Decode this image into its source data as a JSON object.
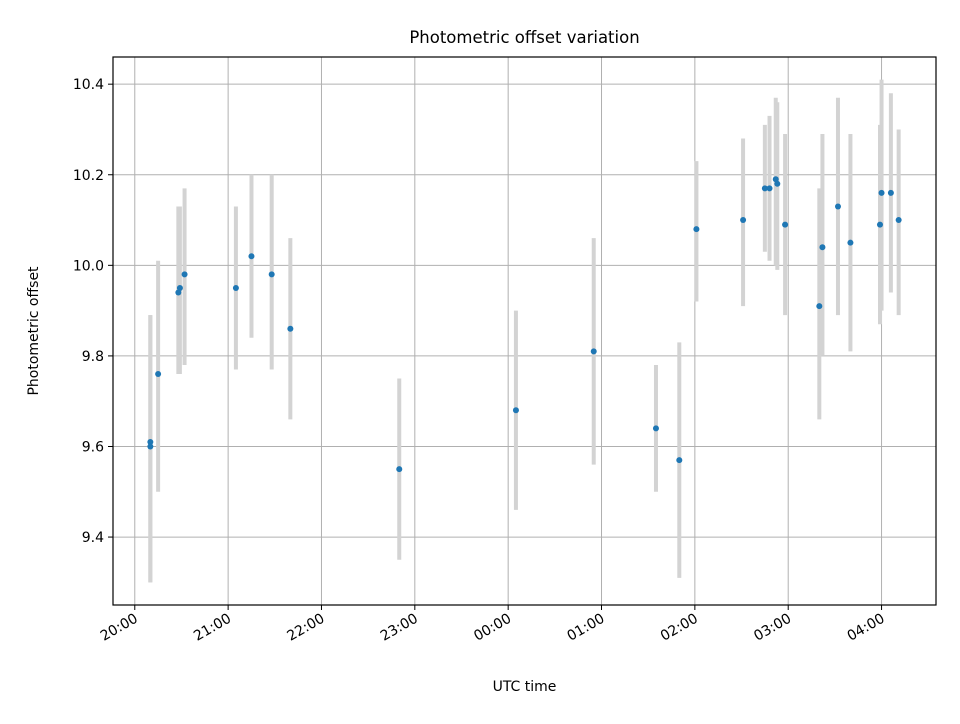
{
  "chart_data": {
    "type": "scatter",
    "title": "Photometric offset variation",
    "xlabel": "UTC time",
    "ylabel": "Photometric offset",
    "x_axis_type": "time",
    "xlim": [
      "19:46",
      "04:35"
    ],
    "ylim": [
      9.25,
      10.46
    ],
    "x_ticks": [
      "20:00",
      "21:00",
      "22:00",
      "23:00",
      "00:00",
      "01:00",
      "02:00",
      "03:00",
      "04:00"
    ],
    "y_ticks": [
      "9.4",
      "9.6",
      "9.8",
      "10.0",
      "10.2",
      "10.4"
    ],
    "grid": true,
    "point_color": "#1f77b4",
    "errorbar_color": "#d3d3d3",
    "points": [
      {
        "x": "20:10",
        "y": 9.61,
        "err_low": 9.3,
        "err_high": 9.89
      },
      {
        "x": "20:10",
        "y": 9.6,
        "err_low": 9.3,
        "err_high": 9.89
      },
      {
        "x": "20:15",
        "y": 9.76,
        "err_low": 9.5,
        "err_high": 10.01
      },
      {
        "x": "20:28",
        "y": 9.94,
        "err_low": 9.76,
        "err_high": 10.13
      },
      {
        "x": "20:29",
        "y": 9.95,
        "err_low": 9.76,
        "err_high": 10.13
      },
      {
        "x": "20:32",
        "y": 9.98,
        "err_low": 9.78,
        "err_high": 10.17
      },
      {
        "x": "21:05",
        "y": 9.95,
        "err_low": 9.77,
        "err_high": 10.13
      },
      {
        "x": "21:15",
        "y": 10.02,
        "err_low": 9.84,
        "err_high": 10.2
      },
      {
        "x": "21:28",
        "y": 9.98,
        "err_low": 9.77,
        "err_high": 10.2
      },
      {
        "x": "21:40",
        "y": 9.86,
        "err_low": 9.66,
        "err_high": 10.06
      },
      {
        "x": "22:50",
        "y": 9.55,
        "err_low": 9.35,
        "err_high": 9.75
      },
      {
        "x": "00:05",
        "y": 9.68,
        "err_low": 9.46,
        "err_high": 9.9
      },
      {
        "x": "00:55",
        "y": 9.81,
        "err_low": 9.56,
        "err_high": 10.06
      },
      {
        "x": "01:35",
        "y": 9.64,
        "err_low": 9.5,
        "err_high": 9.78
      },
      {
        "x": "01:50",
        "y": 9.57,
        "err_low": 9.31,
        "err_high": 9.83
      },
      {
        "x": "02:01",
        "y": 10.08,
        "err_low": 9.92,
        "err_high": 10.23
      },
      {
        "x": "02:31",
        "y": 10.1,
        "err_low": 9.91,
        "err_high": 10.28
      },
      {
        "x": "02:45",
        "y": 10.17,
        "err_low": 10.03,
        "err_high": 10.31
      },
      {
        "x": "02:48",
        "y": 10.17,
        "err_low": 10.01,
        "err_high": 10.33
      },
      {
        "x": "02:52",
        "y": 10.19,
        "err_low": 10.0,
        "err_high": 10.37
      },
      {
        "x": "02:53",
        "y": 10.18,
        "err_low": 9.99,
        "err_high": 10.36
      },
      {
        "x": "02:58",
        "y": 10.09,
        "err_low": 9.89,
        "err_high": 10.29
      },
      {
        "x": "03:20",
        "y": 9.91,
        "err_low": 9.66,
        "err_high": 10.17
      },
      {
        "x": "03:22",
        "y": 10.04,
        "err_low": 9.8,
        "err_high": 10.29
      },
      {
        "x": "03:32",
        "y": 10.13,
        "err_low": 9.89,
        "err_high": 10.37
      },
      {
        "x": "03:40",
        "y": 10.05,
        "err_low": 9.81,
        "err_high": 10.29
      },
      {
        "x": "03:59",
        "y": 10.09,
        "err_low": 9.87,
        "err_high": 10.31
      },
      {
        "x": "04:00",
        "y": 10.16,
        "err_low": 9.9,
        "err_high": 10.41
      },
      {
        "x": "04:06",
        "y": 10.16,
        "err_low": 9.94,
        "err_high": 10.38
      },
      {
        "x": "04:11",
        "y": 10.1,
        "err_low": 9.89,
        "err_high": 10.3
      }
    ]
  }
}
